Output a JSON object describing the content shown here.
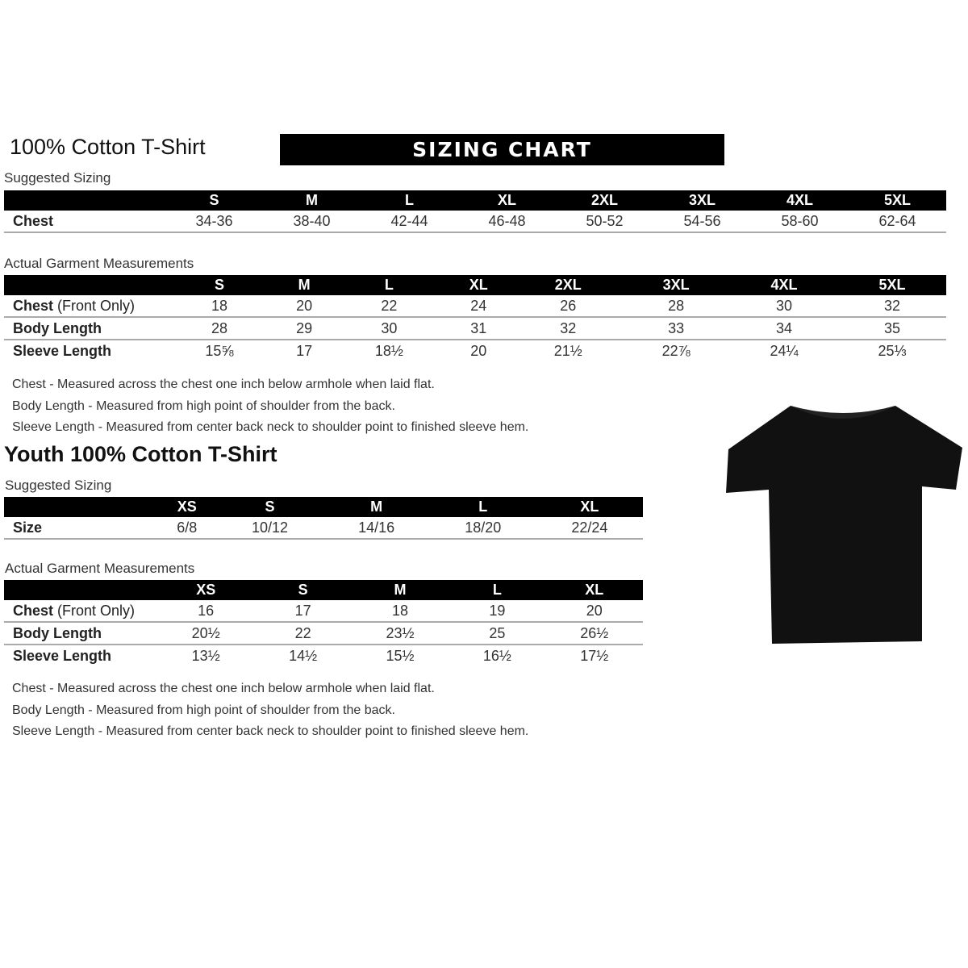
{
  "adult": {
    "title": "100% Cotton T-Shirt",
    "banner": "SIZING CHART",
    "suggested_label": "Suggested Sizing",
    "sizes": [
      "S",
      "M",
      "L",
      "XL",
      "2XL",
      "3XL",
      "4XL",
      "5XL"
    ],
    "suggested_rows": [
      {
        "label": "Chest",
        "values": [
          "34-36",
          "38-40",
          "42-44",
          "46-48",
          "50-52",
          "54-56",
          "58-60",
          "62-64"
        ]
      }
    ],
    "actual_label": "Actual Garment Measurements",
    "actual_rows": [
      {
        "label": "Chest",
        "label_note": "(Front Only)",
        "values": [
          "18",
          "20",
          "22",
          "24",
          "26",
          "28",
          "30",
          "32"
        ]
      },
      {
        "label": "Body Length",
        "label_note": "",
        "values": [
          "28",
          "29",
          "30",
          "31",
          "32",
          "33",
          "34",
          "35"
        ]
      },
      {
        "label": "Sleeve Length",
        "label_note": "",
        "values": [
          "15⅝",
          "17",
          "18½",
          "20",
          "21½",
          "22⅞",
          "24¼",
          "25⅓"
        ]
      }
    ],
    "notes": [
      "Chest - Measured across the chest one inch below armhole when laid flat.",
      "Body Length - Measured from high point of shoulder from the back.",
      "Sleeve Length - Measured from center back neck to shoulder point to finished sleeve hem."
    ]
  },
  "youth": {
    "title": "Youth 100% Cotton T-Shirt",
    "suggested_label": "Suggested Sizing",
    "sizes": [
      "XS",
      "S",
      "M",
      "L",
      "XL"
    ],
    "suggested_rows": [
      {
        "label": "Size",
        "values": [
          "6/8",
          "10/12",
          "14/16",
          "18/20",
          "22/24"
        ]
      }
    ],
    "actual_label": "Actual Garment Measurements",
    "actual_rows": [
      {
        "label": "Chest",
        "label_note": "(Front Only)",
        "values": [
          "16",
          "17",
          "18",
          "19",
          "20"
        ]
      },
      {
        "label": "Body Length",
        "label_note": "",
        "values": [
          "20½",
          "22",
          "23½",
          "25",
          "26½"
        ]
      },
      {
        "label": "Sleeve Length",
        "label_note": "",
        "values": [
          "13½",
          "14½",
          "15½",
          "16½",
          "17½"
        ]
      }
    ],
    "notes": [
      "Chest - Measured across the chest one inch below armhole when laid flat.",
      "Body Length - Measured from high point of shoulder from the back.",
      "Sleeve Length - Measured from center back neck to shoulder point to finished sleeve hem."
    ]
  },
  "image": {
    "icon": "black-tshirt",
    "color": "#111111"
  }
}
